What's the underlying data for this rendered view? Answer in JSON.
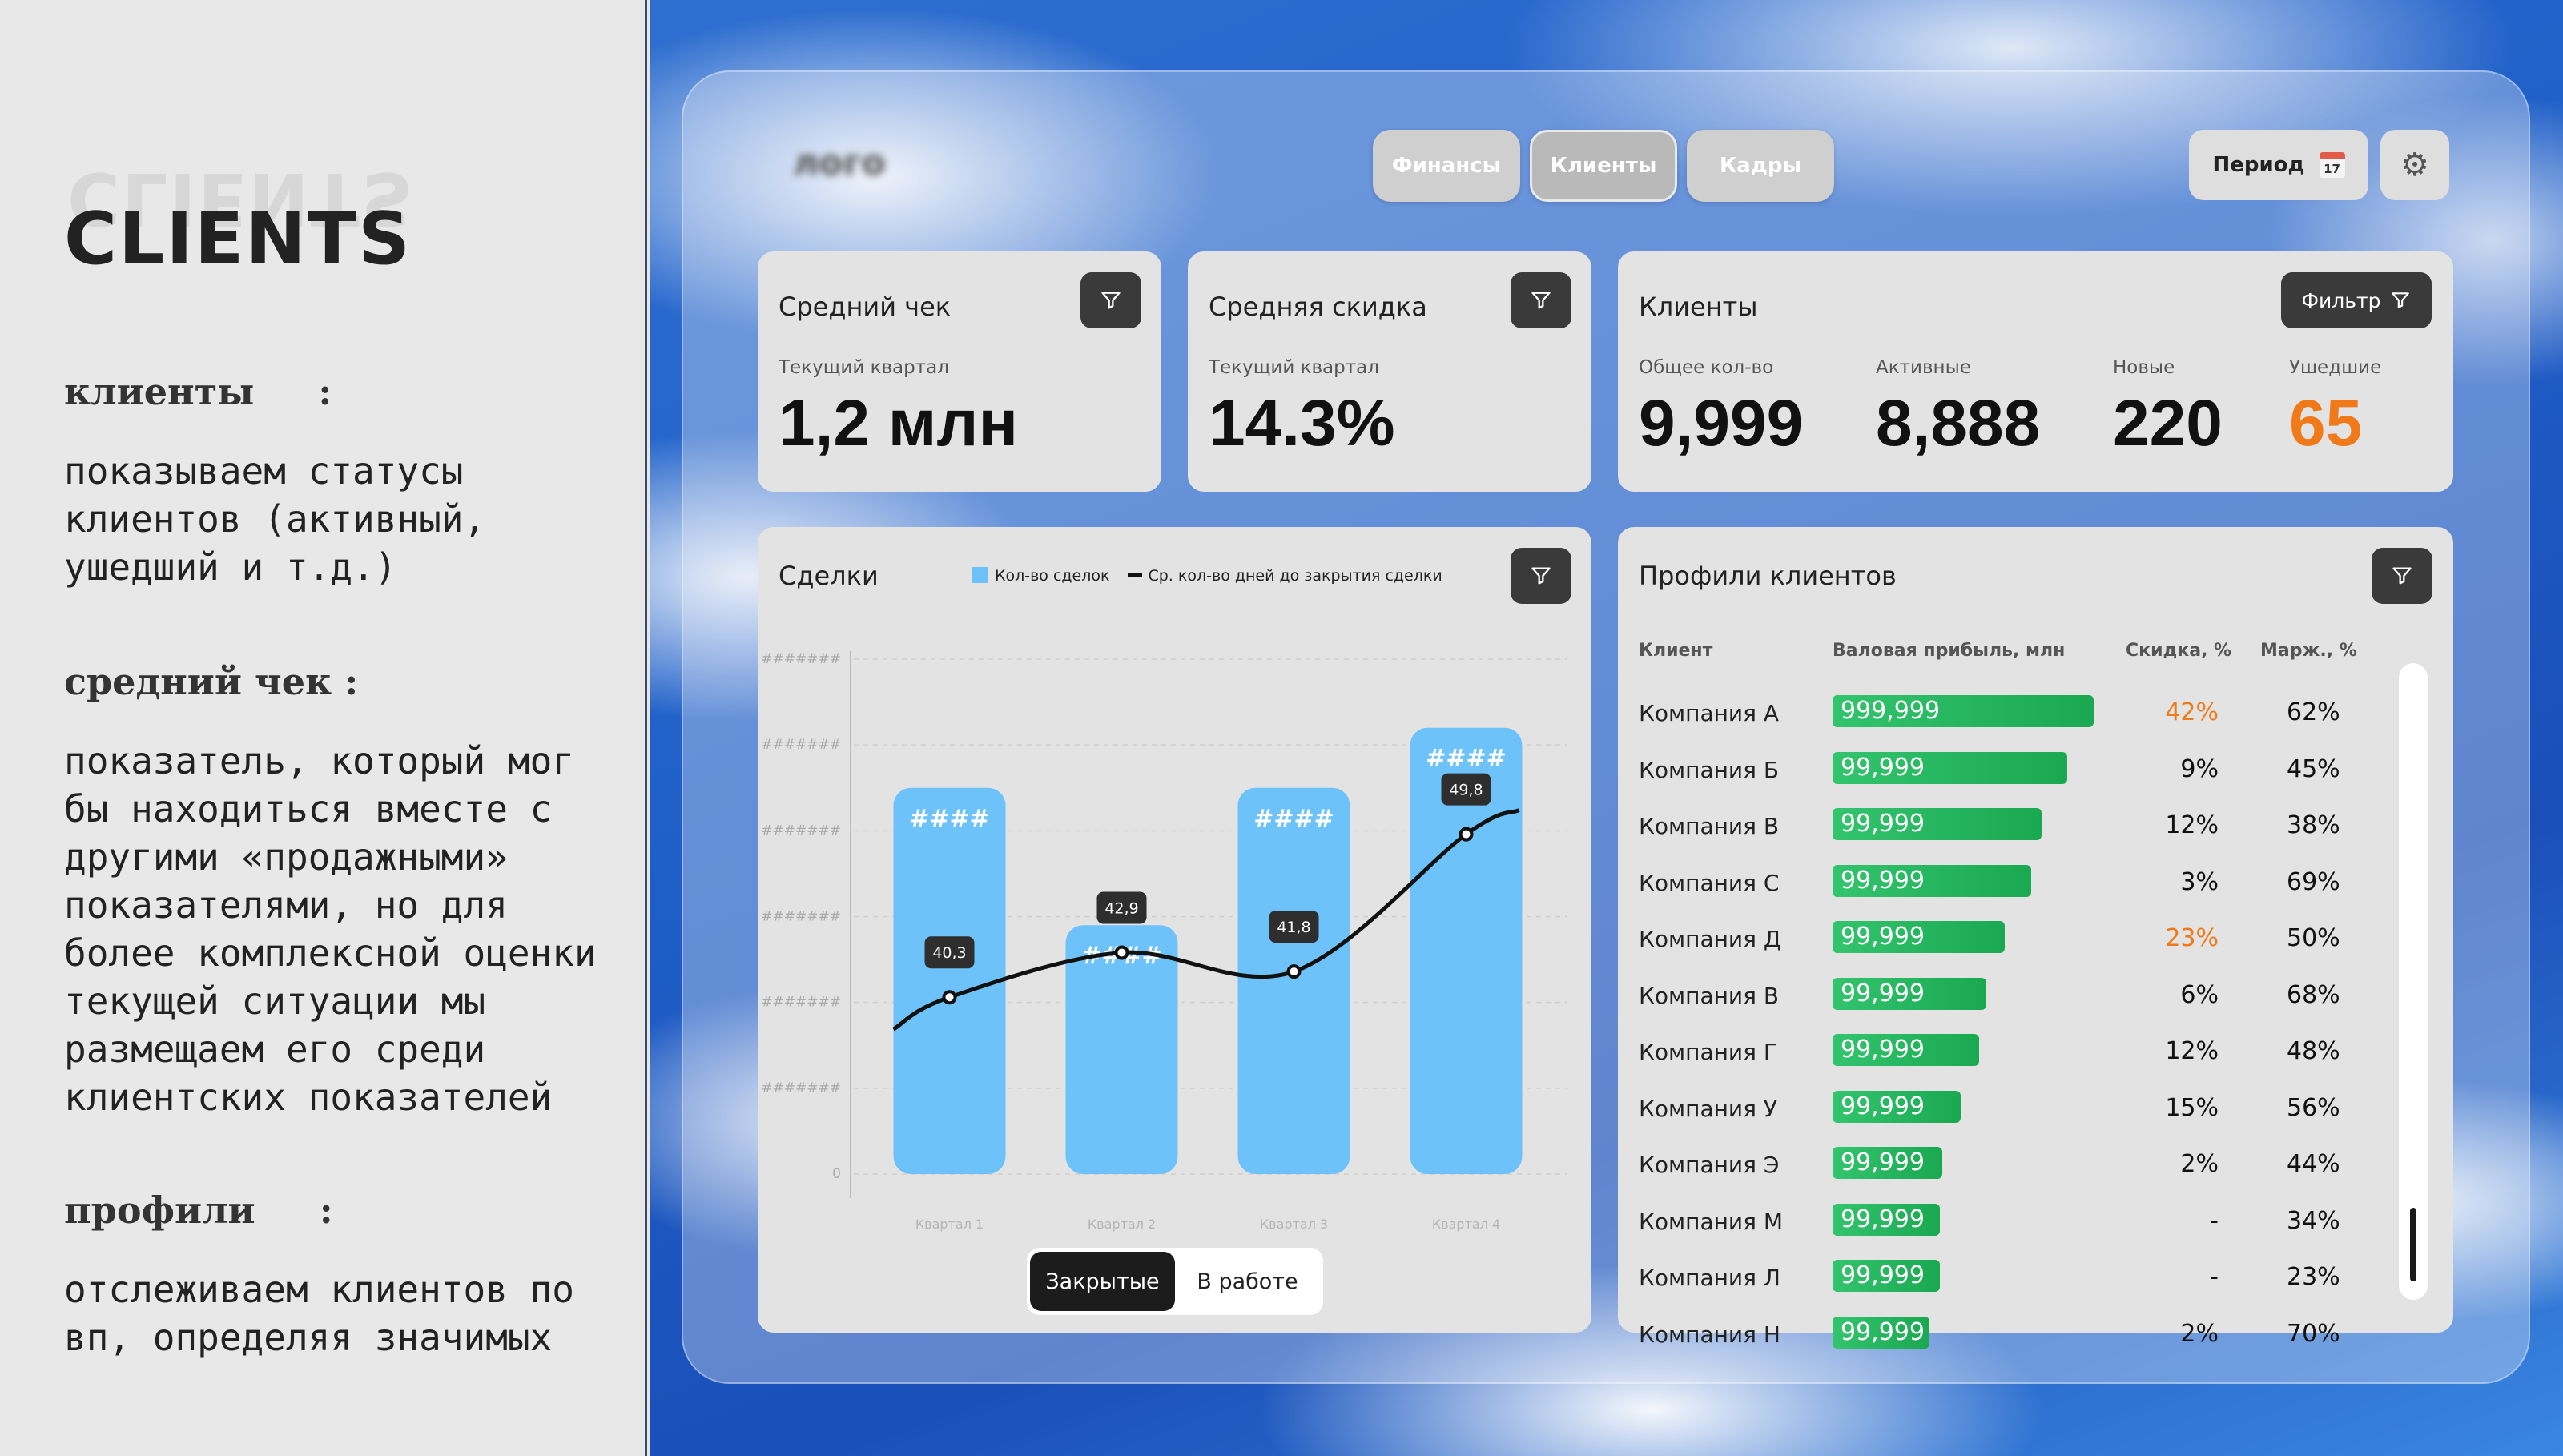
{
  "side": {
    "brand": "CLIENTS",
    "notes": [
      {
        "heading": "клиенты     :",
        "text": "показываем статусы клиентов (активный, ушедший и т.д.)"
      },
      {
        "heading": "средний чек :",
        "text": "показатель, который мог бы находиться вместе с другими «продажными» показателями, но для более комплексной оценки текущей  ситуации мы размещаем его среди клиентских показателей"
      },
      {
        "heading": "профили     :",
        "text": "отслеживаем клиентов по вп, определяя значимых"
      }
    ]
  },
  "topbar": {
    "logo": "лого",
    "tabs": [
      "Финансы",
      "Клиенты",
      "Кадры"
    ],
    "active_tab": "Клиенты",
    "period_label": "Период",
    "calendar_day": "17",
    "icons": {
      "calendar": "calendar-icon",
      "settings": "gear-icon",
      "filter": "filter-icon"
    }
  },
  "avg_check": {
    "title": "Средний чек",
    "sub": "Текущий квартал",
    "value": "1,2 млн"
  },
  "avg_discount": {
    "title": "Средняя скидка",
    "sub": "Текущий квартал",
    "value": "14.3%"
  },
  "clients": {
    "title": "Клиенты",
    "filter_label": "Фильтр",
    "stats": [
      {
        "label": "Общее кол-во",
        "value": "9,999"
      },
      {
        "label": "Активные",
        "value": "8,888"
      },
      {
        "label": "Новые",
        "value": "220"
      },
      {
        "label": "Ушедшие",
        "value": "65"
      }
    ],
    "alert_color": "#f07a1a"
  },
  "deals": {
    "title": "Сделки",
    "legend": [
      "Кол-во сделок",
      "Ср. кол-во дней до закрытия сделки"
    ],
    "toggle": [
      "Закрытые",
      "В работе"
    ],
    "active_toggle": "Закрытые"
  },
  "chart_data": {
    "type": "bar",
    "categories": [
      "Квартал 1",
      "Квартал 2",
      "Квартал 3",
      "Квартал 4"
    ],
    "y_tick_labels": [
      "#######",
      "#######",
      "#######",
      "#######",
      "#######",
      "#######",
      "0"
    ],
    "series": [
      {
        "name": "Кол-во сделок",
        "type": "bar",
        "values": [
          225,
          145,
          225,
          260
        ],
        "labels": [
          "####",
          "####",
          "####",
          "####"
        ],
        "color": "#6cc2f9"
      },
      {
        "name": "Ср. кол-во дней до закрытия сделки",
        "type": "line",
        "values": [
          40.3,
          42.9,
          41.8,
          49.8
        ],
        "labels": [
          "40,3",
          "42,9",
          "41,8",
          "49,8"
        ],
        "color": "#111111"
      }
    ],
    "bar_ylim": [
      0,
      300
    ],
    "line_ylim": [
      30,
      60
    ],
    "grid": true
  },
  "profiles": {
    "title": "Профили клиентов",
    "columns": [
      "Клиент",
      "Валовая прибыль, млн",
      "Скидка, %",
      "Марж., %"
    ],
    "rows": [
      {
        "name": "Компания А",
        "profit": "999,999",
        "profit_frac": 1.0,
        "discount": "42%",
        "margin": "62%",
        "alert": true
      },
      {
        "name": "Компания Б",
        "profit": "99,999",
        "profit_frac": 0.9,
        "discount": "9%",
        "margin": "45%",
        "alert": false
      },
      {
        "name": "Компания В",
        "profit": "99,999",
        "profit_frac": 0.8,
        "discount": "12%",
        "margin": "38%",
        "alert": false
      },
      {
        "name": "Компания С",
        "profit": "99,999",
        "profit_frac": 0.76,
        "discount": "3%",
        "margin": "69%",
        "alert": false
      },
      {
        "name": "Компания Д",
        "profit": "99,999",
        "profit_frac": 0.66,
        "discount": "23%",
        "margin": "50%",
        "alert": true
      },
      {
        "name": "Компания В",
        "profit": "99,999",
        "profit_frac": 0.59,
        "discount": "6%",
        "margin": "68%",
        "alert": false
      },
      {
        "name": "Компания Г",
        "profit": "99,999",
        "profit_frac": 0.56,
        "discount": "12%",
        "margin": "48%",
        "alert": false
      },
      {
        "name": "Компания У",
        "profit": "99,999",
        "profit_frac": 0.49,
        "discount": "15%",
        "margin": "56%",
        "alert": false
      },
      {
        "name": "Компания Э",
        "profit": "99,999",
        "profit_frac": 0.42,
        "discount": "2%",
        "margin": "44%",
        "alert": false
      },
      {
        "name": "Компания М",
        "profit": "99,999",
        "profit_frac": 0.41,
        "discount": "-",
        "margin": "34%",
        "alert": false
      },
      {
        "name": "Компания Л",
        "profit": "99,999",
        "profit_frac": 0.41,
        "discount": "-",
        "margin": "23%",
        "alert": false
      },
      {
        "name": "Компания Н",
        "profit": "99,999",
        "profit_frac": 0.37,
        "discount": "2%",
        "margin": "70%",
        "alert": false
      }
    ]
  }
}
